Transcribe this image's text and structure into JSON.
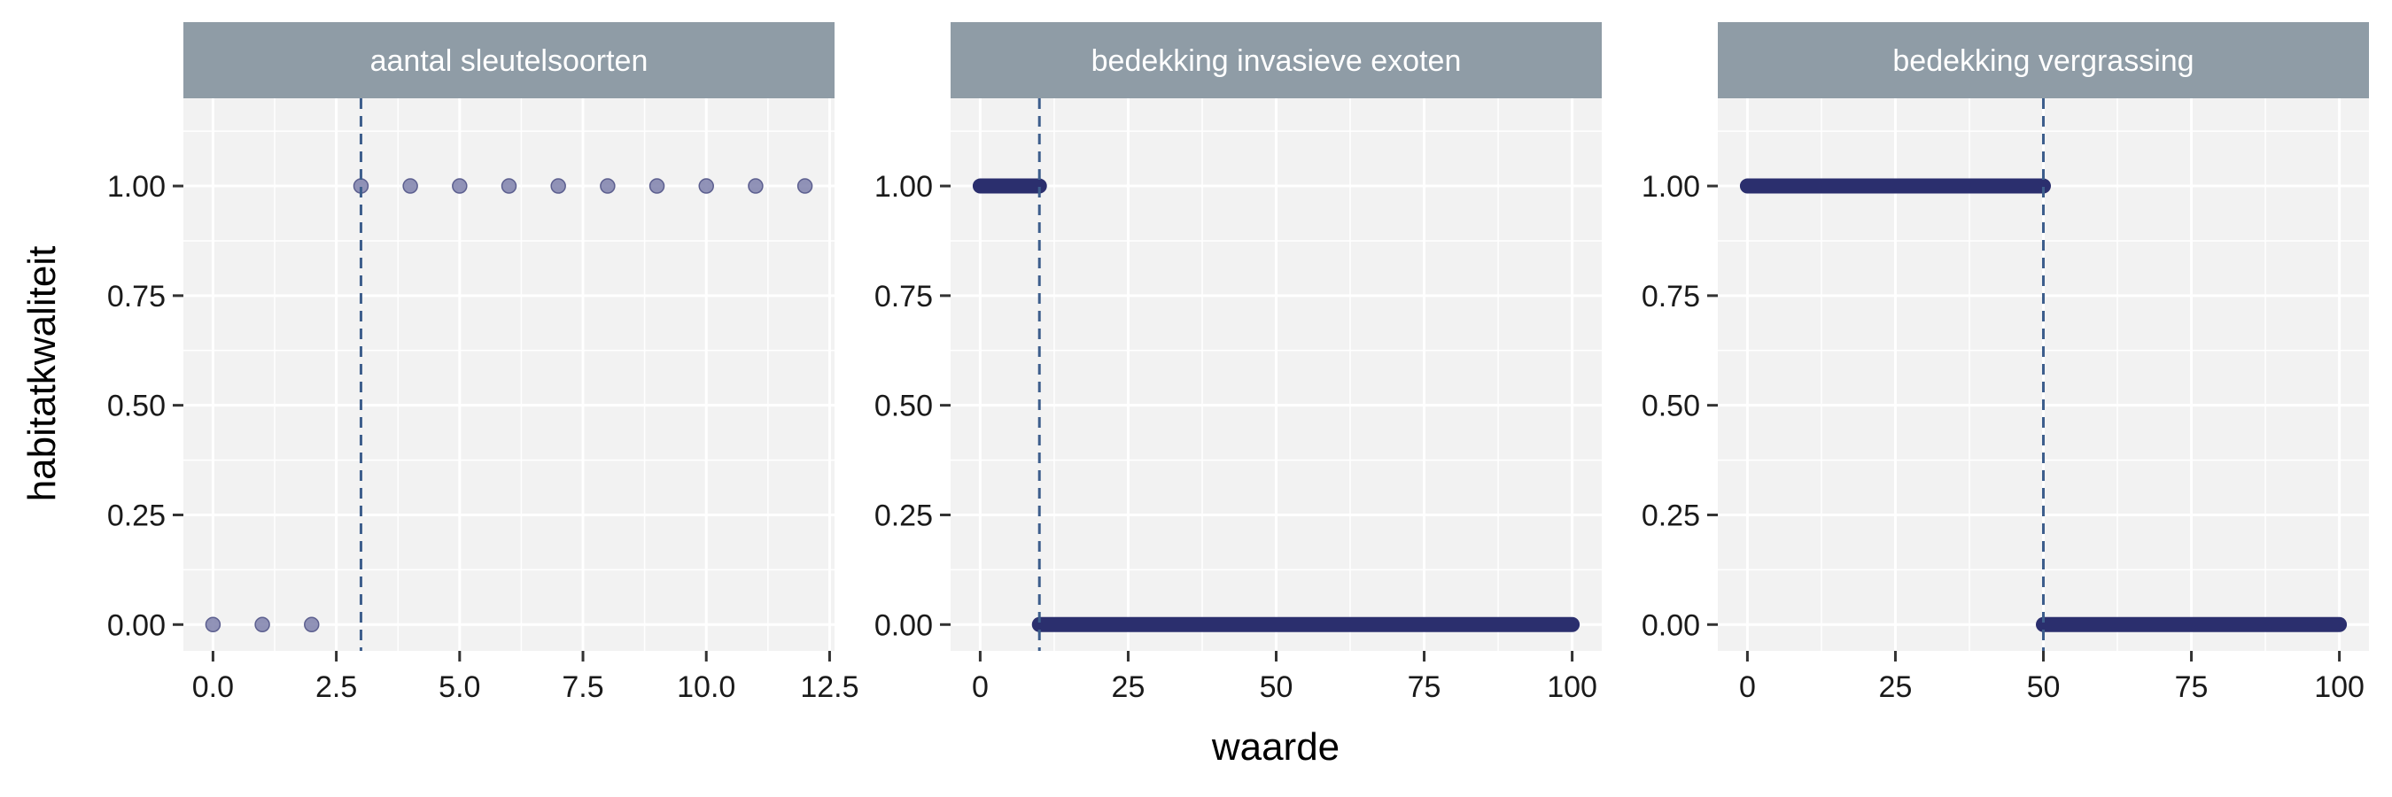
{
  "chart_data": {
    "type": "scatter",
    "xlabel": "waarde",
    "ylabel": "habitatkwaliteit",
    "ylim": [
      -0.06,
      1.2
    ],
    "y_ticks": [
      0,
      0.25,
      0.5,
      0.75,
      1.0
    ],
    "y_tick_labels": [
      "0.00",
      "0.25",
      "0.50",
      "0.75",
      "1.00"
    ],
    "grid": true,
    "colors": {
      "panel_background": "#f2f2f2",
      "strip_background": "#8f9ca6",
      "strip_text": "#ffffff",
      "grid_major": "#ffffff",
      "threshold_line": "#3d5e8c",
      "points_sparse": "#7e80ab",
      "points_dense": "#2b2f6e"
    },
    "panels": [
      {
        "title": "aantal sleutelsoorten",
        "xlim": [
          -0.6,
          12.6
        ],
        "x_ticks": [
          0,
          2.5,
          5,
          7.5,
          10,
          12.5
        ],
        "x_tick_labels": [
          "0.0",
          "2.5",
          "5.0",
          "7.5",
          "10.0",
          "12.5"
        ],
        "threshold": 3,
        "points": [
          {
            "x": 0,
            "y": 0
          },
          {
            "x": 1,
            "y": 0
          },
          {
            "x": 2,
            "y": 0
          },
          {
            "x": 3,
            "y": 1
          },
          {
            "x": 4,
            "y": 1
          },
          {
            "x": 5,
            "y": 1
          },
          {
            "x": 6,
            "y": 1
          },
          {
            "x": 7,
            "y": 1
          },
          {
            "x": 8,
            "y": 1
          },
          {
            "x": 9,
            "y": 1
          },
          {
            "x": 10,
            "y": 1
          },
          {
            "x": 11,
            "y": 1
          },
          {
            "x": 12,
            "y": 1
          }
        ],
        "point_style": "sparse"
      },
      {
        "title": "bedekking invasieve exoten",
        "xlim": [
          -5,
          105
        ],
        "x_ticks": [
          0,
          25,
          50,
          75,
          100
        ],
        "x_tick_labels": [
          "0",
          "25",
          "50",
          "75",
          "100"
        ],
        "threshold": 10,
        "point_runs": [
          {
            "x_from": 0,
            "x_to": 10,
            "y": 1
          },
          {
            "x_from": 10,
            "x_to": 100,
            "y": 0
          }
        ],
        "point_style": "dense"
      },
      {
        "title": "bedekking vergrassing",
        "xlim": [
          -5,
          105
        ],
        "x_ticks": [
          0,
          25,
          50,
          75,
          100
        ],
        "x_tick_labels": [
          "0",
          "25",
          "50",
          "75",
          "100"
        ],
        "threshold": 50,
        "point_runs": [
          {
            "x_from": 0,
            "x_to": 50,
            "y": 1
          },
          {
            "x_from": 50,
            "x_to": 100,
            "y": 0
          }
        ],
        "point_style": "dense"
      }
    ]
  }
}
